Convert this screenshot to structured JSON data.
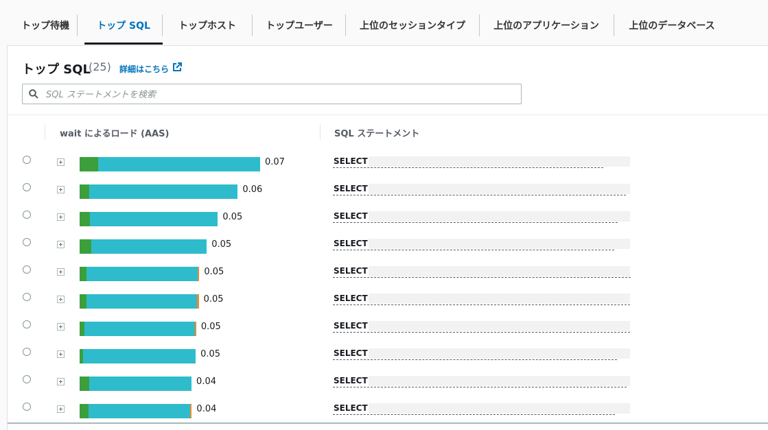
{
  "tabs": [
    {
      "label": "トップ待機"
    },
    {
      "label": "トップ SQL"
    },
    {
      "label": "トップホスト"
    },
    {
      "label": "トップユーザー"
    },
    {
      "label": "上位のセッションタイプ"
    },
    {
      "label": "上位のアプリケーション"
    },
    {
      "label": "上位のデータベース"
    }
  ],
  "active_tab": "トップ SQL",
  "panel": {
    "title": "トップ SQL",
    "count": "(25)",
    "details_link": "詳細はこちら"
  },
  "search": {
    "placeholder": "SQL ステートメントを検索",
    "value": ""
  },
  "table": {
    "columns": [
      "wait によるロード (AAS)",
      "SQL ステートメント"
    ],
    "bar_scale_max": 0.07,
    "colors": {
      "cpu": "#3c9f3c",
      "io": "#2ebccc",
      "other": "#e88a2f"
    },
    "rows": [
      {
        "load": "0.07",
        "cpu": 0.0072,
        "io": 0.0628,
        "other": 0,
        "sql": "SELECT"
      },
      {
        "load": "0.06",
        "cpu": 0.0037,
        "io": 0.0576,
        "other": 0,
        "sql": "SELECT"
      },
      {
        "load": "0.05",
        "cpu": 0.004,
        "io": 0.0496,
        "other": 0,
        "sql": "SELECT"
      },
      {
        "load": "0.05",
        "cpu": 0.0045,
        "io": 0.0448,
        "other": 0,
        "sql": "SELECT"
      },
      {
        "load": "0.05",
        "cpu": 0.0026,
        "io": 0.0432,
        "other": 0.0006,
        "sql": "SELECT"
      },
      {
        "load": "0.05",
        "cpu": 0.0026,
        "io": 0.043,
        "other": 0.0006,
        "sql": "SELECT"
      },
      {
        "load": "0.05",
        "cpu": 0.0019,
        "io": 0.0427,
        "other": 0.0006,
        "sql": "SELECT"
      },
      {
        "load": "0.05",
        "cpu": 0.0013,
        "io": 0.0437,
        "other": 0,
        "sql": "SELECT"
      },
      {
        "load": "0.04",
        "cpu": 0.0037,
        "io": 0.0397,
        "other": 0,
        "sql": "SELECT"
      },
      {
        "load": "0.04",
        "cpu": 0.0035,
        "io": 0.0394,
        "other": 0.0006,
        "sql": "SELECT"
      }
    ]
  }
}
